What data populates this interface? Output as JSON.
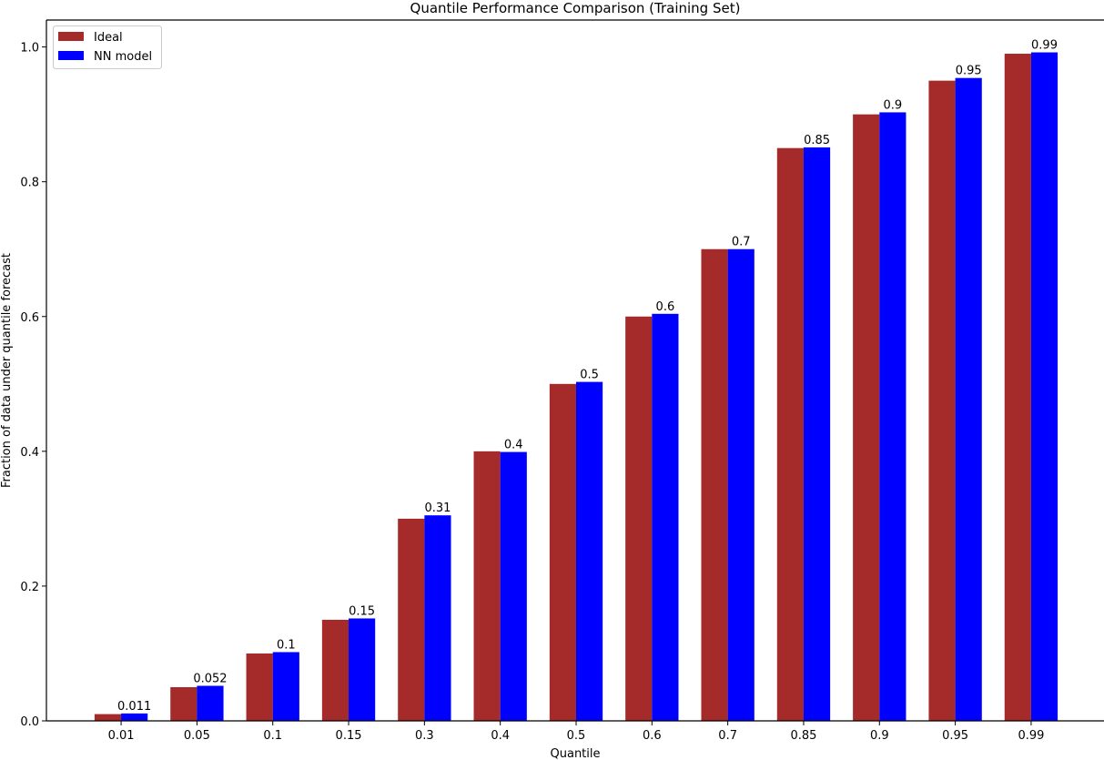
{
  "chart_data": {
    "type": "bar",
    "title": "Quantile Performance Comparison (Training Set)",
    "xlabel": "Quantile",
    "ylabel": "Fraction of data under quantile forecast",
    "categories": [
      "0.01",
      "0.05",
      "0.1",
      "0.15",
      "0.3",
      "0.4",
      "0.5",
      "0.6",
      "0.7",
      "0.85",
      "0.9",
      "0.95",
      "0.99"
    ],
    "series": [
      {
        "name": "Ideal",
        "color": "#a52a2a",
        "values": [
          0.01,
          0.05,
          0.1,
          0.15,
          0.3,
          0.4,
          0.5,
          0.6,
          0.7,
          0.85,
          0.9,
          0.95,
          0.99
        ]
      },
      {
        "name": "NN model",
        "color": "#0000ff",
        "values": [
          0.011,
          0.052,
          0.102,
          0.152,
          0.305,
          0.399,
          0.503,
          0.604,
          0.7,
          0.851,
          0.903,
          0.954,
          0.992
        ],
        "data_labels": [
          "0.011",
          "0.052",
          "0.1",
          "0.15",
          "0.31",
          "0.4",
          "0.5",
          "0.6",
          "0.7",
          "0.85",
          "0.9",
          "0.95",
          "0.99"
        ]
      }
    ],
    "ylim": [
      0,
      1.04
    ],
    "yticks": [
      "0.0",
      "0.2",
      "0.4",
      "0.6",
      "0.8",
      "1.0"
    ],
    "grid": false,
    "legend": "top-left"
  }
}
